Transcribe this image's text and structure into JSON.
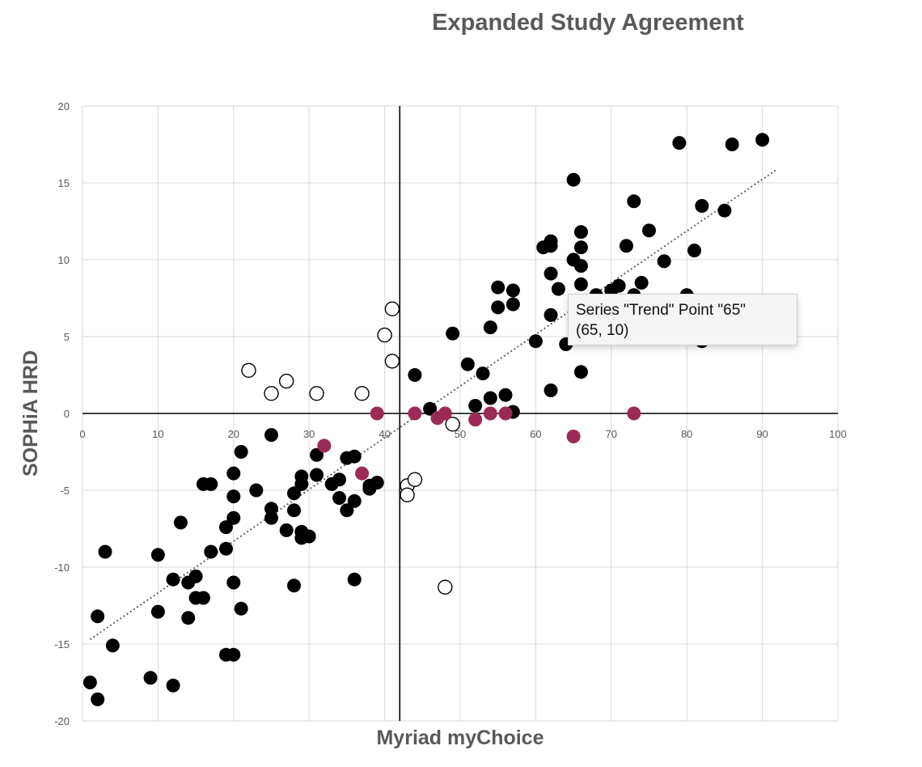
{
  "chart_data": {
    "type": "scatter",
    "title": "Expanded Study Agreement",
    "xlabel": "Myriad myChoice",
    "ylabel": "SOPHiA HRD",
    "xlim": [
      0,
      100
    ],
    "ylim": [
      -20,
      20
    ],
    "xticks": [
      "0",
      "10",
      "20",
      "30",
      "40",
      "50",
      "60",
      "70",
      "80",
      "90",
      "100"
    ],
    "yticks": [
      "20",
      "15",
      "10",
      "5",
      "0",
      "-5",
      "-10",
      "-15",
      "-20"
    ],
    "grid": true,
    "legend": "none",
    "reference_lines": {
      "x": 42,
      "y": 0
    },
    "trendline": {
      "x0": 1,
      "y0": -14.7,
      "x1": 92,
      "y1": 15.9,
      "style": "dotted"
    },
    "series": [
      {
        "style": "filled-black",
        "color": "#000000",
        "points": [
          [
            1,
            -17.5
          ],
          [
            2,
            -18.6
          ],
          [
            2,
            -13.2
          ],
          [
            3,
            -9
          ],
          [
            4,
            -15.1
          ],
          [
            9,
            -17.2
          ],
          [
            10,
            -9.2
          ],
          [
            10,
            -12.9
          ],
          [
            12,
            -10.8
          ],
          [
            12,
            -17.7
          ],
          [
            13,
            -7.1
          ],
          [
            14,
            -11
          ],
          [
            14,
            -13.3
          ],
          [
            15,
            -10.6
          ],
          [
            15,
            -12
          ],
          [
            16,
            -12
          ],
          [
            16,
            -4.6
          ],
          [
            17,
            -4.6
          ],
          [
            17,
            -9
          ],
          [
            19,
            -7.4
          ],
          [
            19,
            -8.8
          ],
          [
            19,
            -15.7
          ],
          [
            20,
            -15.7
          ],
          [
            20,
            -3.9
          ],
          [
            20,
            -5.4
          ],
          [
            20,
            -6.8
          ],
          [
            20,
            -11
          ],
          [
            21,
            -12.7
          ],
          [
            21,
            -2.5
          ],
          [
            23,
            -5
          ],
          [
            25,
            -1.4
          ],
          [
            25,
            -6.2
          ],
          [
            25,
            -6.8
          ],
          [
            27,
            -7.6
          ],
          [
            28,
            -5.2
          ],
          [
            28,
            -6.3
          ],
          [
            28,
            -11.2
          ],
          [
            29,
            -4.1
          ],
          [
            29,
            -4.6
          ],
          [
            29,
            -7.7
          ],
          [
            29,
            -8.1
          ],
          [
            30,
            -8
          ],
          [
            31,
            -4
          ],
          [
            31,
            -2.7
          ],
          [
            33,
            -4.6
          ],
          [
            34,
            -5.5
          ],
          [
            34,
            -4.3
          ],
          [
            35,
            -6.3
          ],
          [
            35,
            -2.9
          ],
          [
            36,
            -2.8
          ],
          [
            36,
            -5.7
          ],
          [
            36,
            -10.8
          ],
          [
            38,
            -4.9
          ],
          [
            38,
            -4.7
          ],
          [
            39,
            -4.5
          ],
          [
            44,
            2.5
          ],
          [
            46,
            0.3
          ],
          [
            49,
            5.2
          ],
          [
            51,
            3.2
          ],
          [
            52,
            0.5
          ],
          [
            53,
            2.6
          ],
          [
            54,
            5.6
          ],
          [
            54,
            1
          ],
          [
            55,
            8.2
          ],
          [
            55,
            6.9
          ],
          [
            56,
            1.2
          ],
          [
            57,
            8
          ],
          [
            57,
            7.1
          ],
          [
            57,
            0.1
          ],
          [
            60,
            4.7
          ],
          [
            61,
            10.8
          ],
          [
            62,
            11.2
          ],
          [
            62,
            10.9
          ],
          [
            62,
            9.1
          ],
          [
            62,
            6.4
          ],
          [
            62,
            1.5
          ],
          [
            63,
            8.1
          ],
          [
            64,
            4.5
          ],
          [
            65,
            15.2
          ],
          [
            65,
            10
          ],
          [
            66,
            11.8
          ],
          [
            66,
            10.8
          ],
          [
            66,
            9.6
          ],
          [
            66,
            8.4
          ],
          [
            66,
            2.7
          ],
          [
            68,
            7.7
          ],
          [
            70,
            8
          ],
          [
            71,
            8.3
          ],
          [
            72,
            10.9
          ],
          [
            73,
            13.8
          ],
          [
            73,
            7.7
          ],
          [
            74,
            8.5
          ],
          [
            75,
            11.9
          ],
          [
            77,
            9.9
          ],
          [
            79,
            17.6
          ],
          [
            80,
            7.7
          ],
          [
            81,
            10.6
          ],
          [
            82,
            13.5
          ],
          [
            82,
            4.7
          ],
          [
            85,
            13.2
          ],
          [
            86,
            17.5
          ],
          [
            90,
            17.8
          ]
        ]
      },
      {
        "style": "hollow",
        "color": "#000000",
        "points": [
          [
            22,
            2.8
          ],
          [
            25,
            1.3
          ],
          [
            27,
            2.1
          ],
          [
            31,
            1.3
          ],
          [
            37,
            1.3
          ],
          [
            40,
            5.1
          ],
          [
            41,
            6.8
          ],
          [
            41,
            3.4
          ],
          [
            43,
            -4.7
          ],
          [
            43,
            -5.3
          ],
          [
            44,
            -4.3
          ],
          [
            48,
            -11.3
          ],
          [
            49,
            -0.7
          ]
        ]
      },
      {
        "style": "filled-maroon",
        "color": "#9c2a57",
        "points": [
          [
            32,
            -2.1
          ],
          [
            37,
            -3.9
          ],
          [
            39,
            0
          ],
          [
            44,
            0
          ],
          [
            47,
            -0.3
          ],
          [
            48,
            0
          ],
          [
            52,
            -0.4
          ],
          [
            54,
            0
          ],
          [
            56,
            0
          ],
          [
            65,
            -1.5
          ],
          [
            73,
            0
          ]
        ]
      }
    ]
  },
  "tooltip": {
    "line1": "Series \"Trend\" Point \"65\"",
    "line2": "(65, 10)"
  }
}
